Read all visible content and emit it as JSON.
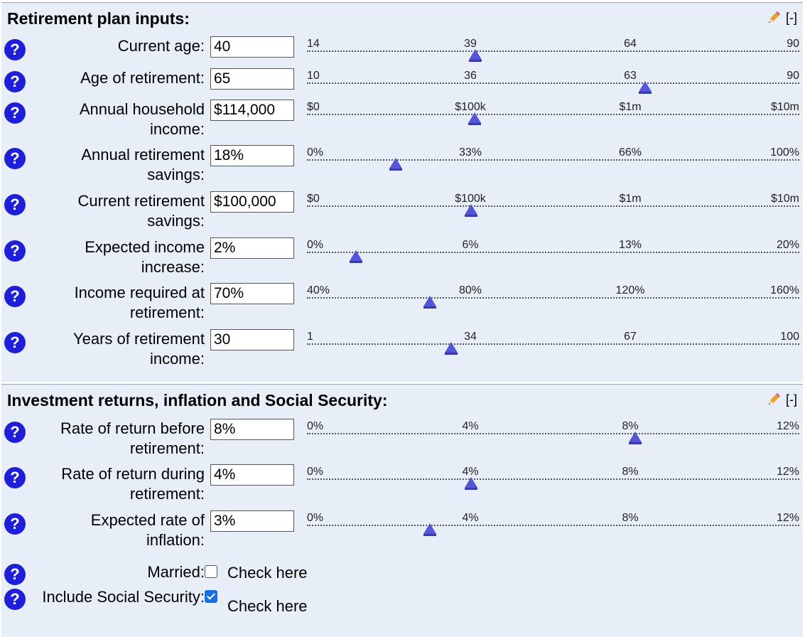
{
  "panel1": {
    "title": "Retirement plan inputs:",
    "collapse_label": "[-]",
    "rows": [
      {
        "label": "Current age:",
        "value": "40",
        "ticks": [
          "14",
          "39",
          "64",
          "90"
        ],
        "slider_fraction": 0.342
      },
      {
        "label": "Age of retirement:",
        "value": "65",
        "ticks": [
          "10",
          "36",
          "63",
          "90"
        ],
        "slider_fraction": 0.6875
      },
      {
        "label": "Annual household income:",
        "value": "$114,000",
        "ticks": [
          "$0",
          "$100k",
          "$1m",
          "$10m"
        ],
        "slider_fraction": 0.34
      },
      {
        "label": "Annual retirement savings:",
        "value": "18%",
        "ticks": [
          "0%",
          "33%",
          "66%",
          "100%"
        ],
        "slider_fraction": 0.18
      },
      {
        "label": "Current retirement savings:",
        "value": "$100,000",
        "ticks": [
          "$0",
          "$100k",
          "$1m",
          "$10m"
        ],
        "slider_fraction": 0.333
      },
      {
        "label": "Expected income increase:",
        "value": "2%",
        "ticks": [
          "0%",
          "6%",
          "13%",
          "20%"
        ],
        "slider_fraction": 0.1
      },
      {
        "label": "Income required at retirement:",
        "value": "70%",
        "ticks": [
          "40%",
          "80%",
          "120%",
          "160%"
        ],
        "slider_fraction": 0.25
      },
      {
        "label": "Years of retirement income:",
        "value": "30",
        "ticks": [
          "1",
          "34",
          "67",
          "100"
        ],
        "slider_fraction": 0.293
      }
    ]
  },
  "panel2": {
    "title": "Investment returns, inflation and Social Security:",
    "collapse_label": "[-]",
    "rows": [
      {
        "label": "Rate of return before retirement:",
        "value": "8%",
        "ticks": [
          "0%",
          "4%",
          "8%",
          "12%"
        ],
        "slider_fraction": 0.6667
      },
      {
        "label": "Rate of return during retirement:",
        "value": "4%",
        "ticks": [
          "0%",
          "4%",
          "8%",
          "12%"
        ],
        "slider_fraction": 0.3333
      },
      {
        "label": "Expected rate of inflation:",
        "value": "3%",
        "ticks": [
          "0%",
          "4%",
          "8%",
          "12%"
        ],
        "slider_fraction": 0.25
      }
    ],
    "checks": [
      {
        "label": "Married:",
        "checked": false,
        "text": "Check here"
      },
      {
        "label": "Include Social Security:",
        "checked": true,
        "text": "Check here"
      }
    ]
  },
  "help_glyph": "?",
  "icons": {
    "help": "question-circle-icon",
    "edit": "pencil-icon"
  },
  "colors": {
    "panel_bg": "#e8eef7",
    "help": "#1f1fd8",
    "thumb": "#5555d8",
    "checkbox": "#1a6fe0"
  }
}
